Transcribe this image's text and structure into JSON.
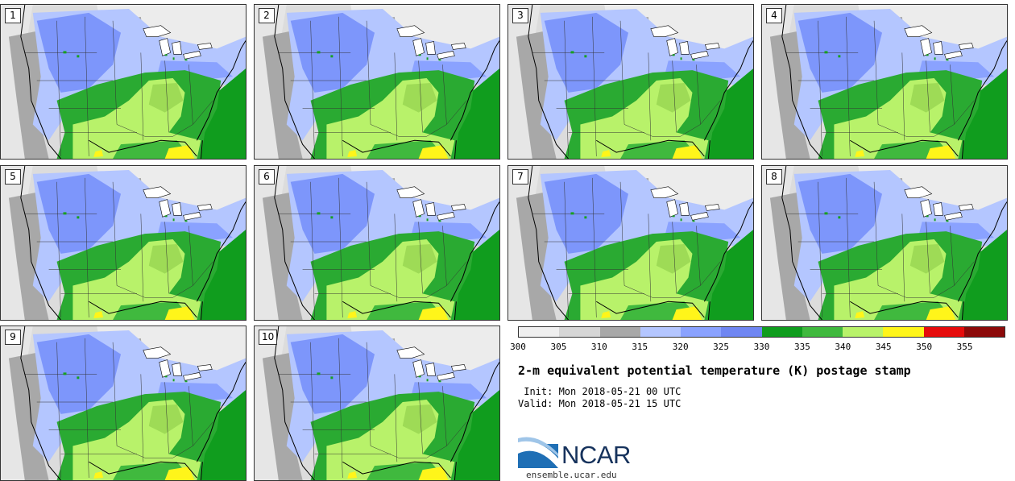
{
  "panels": [
    {
      "label": "1"
    },
    {
      "label": "2"
    },
    {
      "label": "3"
    },
    {
      "label": "4"
    },
    {
      "label": "5"
    },
    {
      "label": "6"
    },
    {
      "label": "7"
    },
    {
      "label": "8"
    },
    {
      "label": "9"
    },
    {
      "label": "10"
    }
  ],
  "colorbar": {
    "colors": [
      "#efefef",
      "#d6d6d6",
      "#a8a8a8",
      "#b4c6ff",
      "#8aa2ff",
      "#6f86f2",
      "#109d1e",
      "#40b93e",
      "#b8f26a",
      "#fff51a",
      "#e60c0c",
      "#8c0a0a"
    ],
    "ticks": [
      "300",
      "305",
      "310",
      "315",
      "320",
      "325",
      "330",
      "335",
      "340",
      "345",
      "350",
      "355"
    ]
  },
  "title": "2-m equivalent potential temperature (K) postage stamp",
  "init_line": " Init: Mon 2018-05-21 00 UTC",
  "valid_line": "Valid: Mon 2018-05-21 15 UTC",
  "logo": {
    "text": "NCAR",
    "url_text": "ensemble.ucar.edu"
  }
}
